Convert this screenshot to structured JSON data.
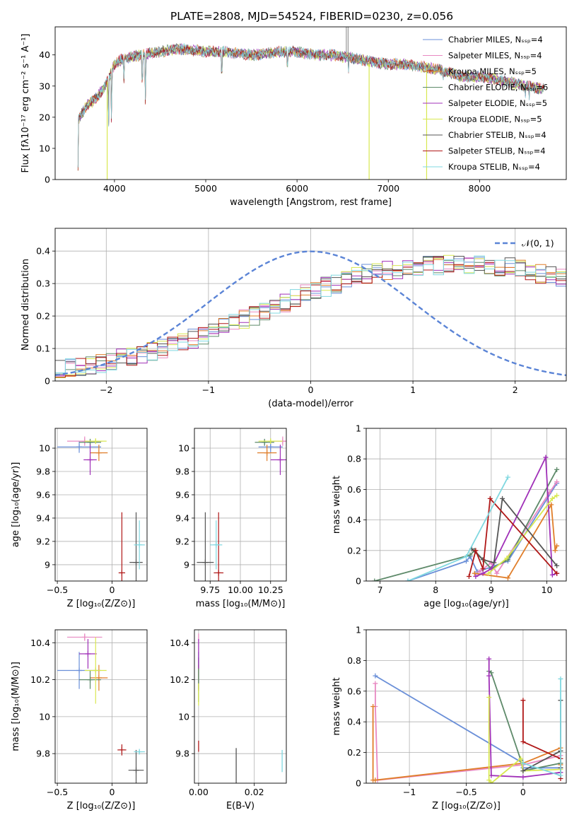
{
  "figure": {
    "title": "PLATE=2808, MJD=54524, FIBERID=0230, z=0.056"
  },
  "colors": [
    "#6a8fd8",
    "#e889c2",
    "#e07e2a",
    "#5e8a6a",
    "#a030b8",
    "#d8e850",
    "#555555",
    "#b01818",
    "#80d8e0"
  ],
  "chart_data": [
    {
      "id": "spectrum",
      "type": "line",
      "xlabel": "wavelength [Angstrom, rest frame]",
      "ylabel": "Flux [fλ10⁻¹⁷ erg cm⁻² s⁻¹ A⁻¹]",
      "xlim": [
        3350,
        8950
      ],
      "ylim": [
        0,
        49
      ],
      "xticks": [
        4000,
        5000,
        6000,
        7000,
        8000
      ],
      "yticks": [
        0,
        10,
        20,
        30,
        40
      ],
      "grid": false,
      "legend": "upper right",
      "legend_entries": [
        "Chabrier MILES, Nₛₛₚ=4",
        "Salpeter MILES, Nₛₛₚ=4",
        "Kroupa MILES, Nₛₛₚ=5",
        "Chabrier ELODIE, Nₛₛₚ=6",
        "Salpeter ELODIE, Nₛₛₚ=5",
        "Kroupa ELODIE, Nₛₛₚ=5",
        "Chabrier STELIB, Nₛₛₚ=4",
        "Salpeter STELIB, Nₛₛₚ=4",
        "Kroupa STELIB, Nₛₛₚ=4"
      ],
      "continuum": {
        "x": [
          3600,
          3700,
          3800,
          3900,
          4000,
          4100,
          4300,
          4500,
          4700,
          5000,
          5200,
          5500,
          5800,
          6000,
          6200,
          6400,
          6600,
          6800,
          7000,
          7200,
          7400,
          7600,
          7800,
          8000,
          8200,
          8500,
          8700
        ],
        "y": [
          19,
          24,
          26,
          30,
          37,
          39,
          40,
          41,
          42,
          41,
          41,
          40,
          41,
          41,
          40,
          40,
          39,
          38,
          37,
          37,
          36,
          35,
          33,
          33,
          32,
          30,
          29
        ]
      },
      "absorption_lines": [
        {
          "x": 3600,
          "y": 3
        },
        {
          "x": 3934,
          "y": 8
        },
        {
          "x": 3968,
          "y": 9
        },
        {
          "x": 4102,
          "y": 27
        },
        {
          "x": 4305,
          "y": 20
        },
        {
          "x": 4340,
          "y": 15
        },
        {
          "x": 5175,
          "y": 26
        },
        {
          "x": 5895,
          "y": 31
        },
        {
          "x": 6563,
          "y": 34
        },
        {
          "x": 7600,
          "y": 30
        },
        {
          "x": 8500,
          "y": 25
        },
        {
          "x": 8542,
          "y": 24
        }
      ],
      "spikes": [
        {
          "x": 3920,
          "y": 0
        },
        {
          "x": 6790,
          "y": 0
        },
        {
          "x": 7420,
          "y": 0
        },
        {
          "x": 6540,
          "y": 49
        },
        {
          "x": 6560,
          "y": 49
        }
      ]
    },
    {
      "id": "residuals",
      "type": "histogram",
      "xlabel": "(data-model)/error",
      "ylabel": "Normed distribution",
      "xlim": [
        -2.5,
        2.5
      ],
      "ylim": [
        0,
        0.47
      ],
      "xticks": [
        -2,
        -1,
        0,
        1,
        2
      ],
      "yticks": [
        0.0,
        0.1,
        0.2,
        0.3,
        0.4
      ],
      "grid": true,
      "legend": "upper right",
      "gaussian_label": "𝒩(0, 1)",
      "gaussian_color": "#5b84d6",
      "bin_width": 0.1,
      "hist_base": [
        0.035,
        0.04,
        0.045,
        0.05,
        0.055,
        0.06,
        0.07,
        0.075,
        0.085,
        0.09,
        0.1,
        0.11,
        0.12,
        0.13,
        0.14,
        0.155,
        0.165,
        0.175,
        0.19,
        0.2,
        0.21,
        0.225,
        0.24,
        0.255,
        0.27,
        0.28,
        0.29,
        0.3,
        0.31,
        0.32,
        0.33,
        0.335,
        0.34,
        0.345,
        0.35,
        0.35,
        0.355,
        0.355,
        0.36,
        0.36,
        0.36,
        0.355,
        0.355,
        0.35,
        0.35,
        0.345,
        0.34,
        0.33,
        0.325,
        0.315,
        0.305,
        0.295,
        0.285,
        0.275,
        0.26,
        0.25,
        0.24,
        0.225,
        0.21,
        0.2,
        0.19,
        0.175,
        0.165,
        0.155,
        0.145,
        0.135,
        0.125,
        0.115,
        0.105,
        0.1,
        0.09,
        0.085,
        0.08,
        0.075,
        0.07,
        0.065,
        0.06,
        0.055,
        0.055,
        0.05
      ]
    },
    {
      "id": "age-vs-metallicity",
      "type": "errorbar",
      "xlabel": "Z [log₁₀(Z/Z⊙)]",
      "ylabel": "age  [log₁₀(age/yr)]",
      "xlim": [
        -0.52,
        0.32
      ],
      "ylim": [
        8.86,
        10.17
      ],
      "xticks": [
        -0.5,
        0.0
      ],
      "yticks": [
        9.0,
        9.2,
        9.4,
        9.6,
        9.8,
        10.0
      ],
      "grid": true,
      "points": [
        {
          "x": -0.3,
          "y": 10.01,
          "xerr": 0.2,
          "yerr": 0.05
        },
        {
          "x": -0.25,
          "y": 10.06,
          "xerr": 0.16,
          "yerr": 0.04
        },
        {
          "x": -0.12,
          "y": 9.96,
          "xerr": 0.08,
          "yerr": 0.07
        },
        {
          "x": -0.2,
          "y": 10.05,
          "xerr": 0.1,
          "yerr": 0.03
        },
        {
          "x": -0.2,
          "y": 9.9,
          "xerr": 0.06,
          "yerr": 0.13
        },
        {
          "x": -0.15,
          "y": 10.06,
          "xerr": 0.1,
          "yerr": 0.02
        },
        {
          "x": 0.22,
          "y": 9.02,
          "xerr": 0.06,
          "yerr": 0.43
        },
        {
          "x": 0.09,
          "y": 8.93,
          "xerr": 0.03,
          "yerr": 0.52
        },
        {
          "x": 0.25,
          "y": 9.17,
          "xerr": 0.05,
          "yerr": 0.21
        }
      ]
    },
    {
      "id": "age-vs-mass",
      "type": "errorbar",
      "xlabel": "mass [log₁₀(M/M⊙)]",
      "ylabel": "",
      "xlim": [
        9.62,
        10.38
      ],
      "ylim": [
        8.86,
        10.17
      ],
      "xticks": [
        9.75,
        10.0,
        10.25
      ],
      "xticklabels": [
        "9.75",
        "10.00",
        "10.25"
      ],
      "yticks": [
        9.0,
        9.2,
        9.4,
        9.6,
        9.8,
        10.0
      ],
      "grid": true,
      "points": [
        {
          "x": 10.25,
          "y": 10.01,
          "xerr": 0.1,
          "yerr": 0.05
        },
        {
          "x": 10.35,
          "y": 10.06,
          "xerr": 0.08,
          "yerr": 0.04
        },
        {
          "x": 10.22,
          "y": 9.96,
          "xerr": 0.08,
          "yerr": 0.07
        },
        {
          "x": 10.2,
          "y": 10.05,
          "xerr": 0.08,
          "yerr": 0.03
        },
        {
          "x": 10.33,
          "y": 9.9,
          "xerr": 0.08,
          "yerr": 0.13
        },
        {
          "x": 10.25,
          "y": 10.06,
          "xerr": 0.1,
          "yerr": 0.02
        },
        {
          "x": 9.71,
          "y": 9.02,
          "xerr": 0.07,
          "yerr": 0.43
        },
        {
          "x": 9.82,
          "y": 8.93,
          "xerr": 0.04,
          "yerr": 0.52
        },
        {
          "x": 9.8,
          "y": 9.17,
          "xerr": 0.05,
          "yerr": 0.21
        }
      ]
    },
    {
      "id": "weight-vs-age",
      "type": "line",
      "xlabel": "age  [log₁₀(age/yr)]",
      "ylabel": "mass weight",
      "xlim": [
        6.75,
        10.35
      ],
      "ylim": [
        0,
        1
      ],
      "xticks": [
        7,
        8,
        9,
        10
      ],
      "yticks": [
        0.0,
        0.2,
        0.4,
        0.6,
        0.8,
        1.0
      ],
      "grid": true,
      "series": [
        {
          "x": [
            7.5,
            8.55,
            8.62,
            8.75,
            9.3,
            10.18
          ],
          "y": [
            0.0,
            0.13,
            0.16,
            0.06,
            0.13,
            0.64
          ]
        },
        {
          "x": [
            8.78,
            9.0,
            9.1,
            10.05,
            10.18
          ],
          "y": [
            0.06,
            0.12,
            0.05,
            0.58,
            0.65
          ]
        },
        {
          "x": [
            8.7,
            9.3,
            10.08,
            10.15,
            10.18
          ],
          "y": [
            0.05,
            0.02,
            0.5,
            0.2,
            0.23
          ]
        },
        {
          "x": [
            6.9,
            8.62,
            8.7,
            9.0,
            9.3,
            10.18
          ],
          "y": [
            0.0,
            0.17,
            0.2,
            0.08,
            0.14,
            0.73
          ]
        },
        {
          "x": [
            8.72,
            8.85,
            9.0,
            9.98,
            10.1,
            10.18
          ],
          "y": [
            0.03,
            0.05,
            0.08,
            0.81,
            0.04,
            0.05
          ]
        },
        {
          "x": [
            8.95,
            9.28,
            10.1,
            10.18
          ],
          "y": [
            0.05,
            0.15,
            0.54,
            0.56
          ]
        },
        {
          "x": [
            8.65,
            8.85,
            9.05,
            9.2,
            10.18
          ],
          "y": [
            0.21,
            0.14,
            0.12,
            0.54,
            0.1
          ]
        },
        {
          "x": [
            8.6,
            8.72,
            8.85,
            8.98,
            10.18
          ],
          "y": [
            0.03,
            0.2,
            0.08,
            0.54,
            0.05
          ]
        },
        {
          "x": [
            7.5,
            8.55,
            9.3
          ],
          "y": [
            0.0,
            0.16,
            0.68
          ]
        }
      ]
    },
    {
      "id": "mass-vs-metallicity",
      "type": "errorbar",
      "xlabel": "Z [log₁₀(Z/Z⊙)]",
      "ylabel": "mass [log₁₀(M/M⊙)]",
      "xlim": [
        -0.52,
        0.32
      ],
      "ylim": [
        9.64,
        10.47
      ],
      "xticks": [
        -0.5,
        0.0
      ],
      "yticks": [
        9.8,
        10.0,
        10.2,
        10.4
      ],
      "grid": true,
      "points": [
        {
          "x": -0.3,
          "y": 10.25,
          "xerr": 0.2,
          "yerr": 0.1
        },
        {
          "x": -0.25,
          "y": 10.43,
          "xerr": 0.16,
          "yerr": 0.02
        },
        {
          "x": -0.12,
          "y": 10.21,
          "xerr": 0.08,
          "yerr": 0.07
        },
        {
          "x": -0.2,
          "y": 10.2,
          "xerr": 0.1,
          "yerr": 0.05
        },
        {
          "x": -0.22,
          "y": 10.34,
          "xerr": 0.08,
          "yerr": 0.08
        },
        {
          "x": -0.15,
          "y": 10.25,
          "xerr": 0.1,
          "yerr": 0.18
        },
        {
          "x": 0.22,
          "y": 9.71,
          "xerr": 0.07,
          "yerr": 0.11
        },
        {
          "x": 0.09,
          "y": 9.82,
          "xerr": 0.04,
          "yerr": 0.03
        },
        {
          "x": 0.25,
          "y": 9.81,
          "xerr": 0.05,
          "yerr": 0.01
        }
      ]
    },
    {
      "id": "mass-vs-extinction",
      "type": "scatter",
      "xlabel": "E(B-V)",
      "ylabel": "",
      "xlim": [
        -0.0015,
        0.0315
      ],
      "ylim": [
        9.64,
        10.47
      ],
      "xticks": [
        0.0,
        0.02
      ],
      "xticklabels": [
        "0.00",
        "0.02"
      ],
      "yticks": [
        9.8,
        10.0,
        10.2,
        10.4
      ],
      "grid": true,
      "points": [
        {
          "x": 0.0,
          "y": 10.25,
          "yerr": 0.1
        },
        {
          "x": 0.0,
          "y": 10.43,
          "yerr": 0.02
        },
        {
          "x": 0.0,
          "y": 10.21,
          "yerr": 0.07
        },
        {
          "x": 0.0,
          "y": 10.2,
          "yerr": 0.12
        },
        {
          "x": 0.0,
          "y": 10.34,
          "yerr": 0.08
        },
        {
          "x": 0.0,
          "y": 10.12,
          "yerr": 0.06
        },
        {
          "x": 0.0135,
          "y": 9.72,
          "yerr": 0.11
        },
        {
          "x": 0.0,
          "y": 9.84,
          "yerr": 0.03
        },
        {
          "x": 0.03,
          "y": 9.76,
          "yerr": 0.06
        }
      ]
    },
    {
      "id": "weight-vs-metallicity",
      "type": "line",
      "xlabel": "Z [log₁₀(Z/Z⊙)]",
      "ylabel": "mass weight",
      "xlim": [
        -1.38,
        0.38
      ],
      "ylim": [
        0,
        1
      ],
      "xticks": [
        -1.0,
        -0.5,
        0.0
      ],
      "yticks": [
        0.0,
        0.2,
        0.4,
        0.6,
        0.8,
        1.0
      ],
      "grid": true,
      "series": [
        {
          "x": [
            -1.3,
            0.0,
            0.0,
            0.33
          ],
          "y": [
            0.7,
            0.13,
            0.1,
            0.1
          ]
        },
        {
          "x": [
            -1.3,
            -1.3,
            -1.28,
            0.0,
            0.33,
            0.33
          ],
          "y": [
            0.65,
            0.5,
            0.02,
            0.12,
            0.18,
            0.1
          ]
        },
        {
          "x": [
            -1.32,
            -1.32,
            -1.3,
            0.0,
            0.33,
            0.33
          ],
          "y": [
            0.5,
            0.02,
            0.02,
            0.13,
            0.23,
            0.12
          ]
        },
        {
          "x": [
            -0.3,
            -0.28,
            -0.02,
            0.0,
            0.33
          ],
          "y": [
            0.73,
            0.72,
            0.15,
            0.08,
            0.13
          ]
        },
        {
          "x": [
            -0.3,
            -0.3,
            -0.28,
            0.0,
            0.33
          ],
          "y": [
            0.81,
            0.7,
            0.05,
            0.04,
            0.07
          ]
        },
        {
          "x": [
            -0.3,
            -0.3,
            -0.28,
            -0.02,
            0.0,
            0.33
          ],
          "y": [
            0.56,
            0.02,
            0.0,
            0.16,
            0.08,
            0.09
          ]
        },
        {
          "x": [
            0.0,
            0.33,
            0.33,
            0.33
          ],
          "y": [
            0.08,
            0.21,
            0.54,
            0.1
          ]
        },
        {
          "x": [
            0.0,
            0.0,
            0.33,
            0.33
          ],
          "y": [
            0.54,
            0.27,
            0.16,
            0.03
          ]
        },
        {
          "x": [
            0.0,
            0.33,
            0.33
          ],
          "y": [
            0.13,
            0.05,
            0.68
          ]
        }
      ]
    }
  ]
}
